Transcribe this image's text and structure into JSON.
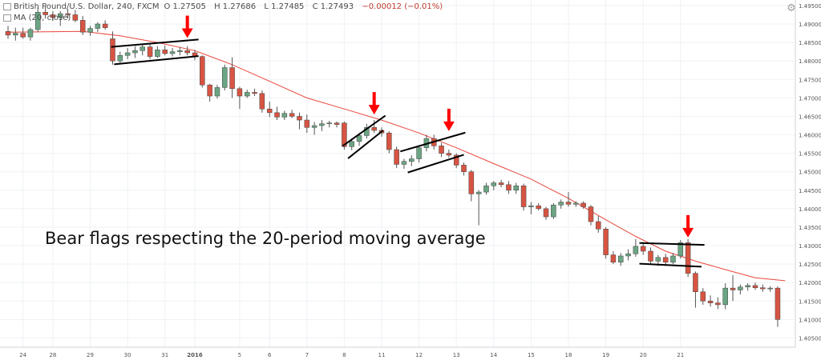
{
  "legend": {
    "symbol_label": "British Pound/U.S. Dollar, 240, FXCM",
    "ohlc": {
      "open": "O 1.27505",
      "high": "H 1.27686",
      "low": "L 1.27485",
      "close": "C 1.27493",
      "change": "−0.00012 (−0.01%)"
    },
    "ma_label": "MA (20, close)"
  },
  "annotation": "Bear flags respecting the 20-period moving average",
  "colors": {
    "up": "#6ba583",
    "down": "#d75442",
    "ma": "#e8473b",
    "arrow": "#ff0000",
    "grid": "#eef1f4",
    "axis_text": "#555555"
  },
  "icons": [
    "settings-icon",
    "arrow-down-icon"
  ],
  "chart_data": {
    "type": "candlestick",
    "title": "British Pound/U.S. Dollar, 240, FXCM",
    "xlabel": "",
    "ylabel": "",
    "ylim": [
      1.4025,
      1.4965
    ],
    "grid": true,
    "y_ticks": [
      "1.49500",
      "1.49000",
      "1.48500",
      "1.48000",
      "1.47500",
      "1.47000",
      "1.46500",
      "1.46000",
      "1.45500",
      "1.45000",
      "1.44500",
      "1.44000",
      "1.43500",
      "1.43000",
      "1.42500",
      "1.42000",
      "1.41500",
      "1.41000",
      "1.40500"
    ],
    "x_ticks": [
      {
        "label": "24",
        "index": 2
      },
      {
        "label": "28",
        "index": 6
      },
      {
        "label": "29",
        "index": 11
      },
      {
        "label": "30",
        "index": 16
      },
      {
        "label": "31",
        "index": 21
      },
      {
        "label": "2016",
        "index": 25
      },
      {
        "label": "5",
        "index": 31
      },
      {
        "label": "6",
        "index": 35
      },
      {
        "label": "7",
        "index": 40
      },
      {
        "label": "8",
        "index": 45
      },
      {
        "label": "11",
        "index": 50
      },
      {
        "label": "12",
        "index": 55
      },
      {
        "label": "13",
        "index": 60
      },
      {
        "label": "14",
        "index": 65
      },
      {
        "label": "15",
        "index": 70
      },
      {
        "label": "18",
        "index": 75
      },
      {
        "label": "19",
        "index": 80
      },
      {
        "label": "20",
        "index": 85
      },
      {
        "label": "21",
        "index": 90
      }
    ],
    "candles": [
      {
        "o": 1.488,
        "h": 1.4895,
        "l": 1.486,
        "c": 1.487
      },
      {
        "o": 1.487,
        "h": 1.489,
        "l": 1.4855,
        "c": 1.4875
      },
      {
        "o": 1.4875,
        "h": 1.489,
        "l": 1.486,
        "c": 1.4865
      },
      {
        "o": 1.4865,
        "h": 1.489,
        "l": 1.4855,
        "c": 1.4885
      },
      {
        "o": 1.4885,
        "h": 1.4945,
        "l": 1.4878,
        "c": 1.4932
      },
      {
        "o": 1.4932,
        "h": 1.4948,
        "l": 1.4915,
        "c": 1.4925
      },
      {
        "o": 1.4925,
        "h": 1.4935,
        "l": 1.4908,
        "c": 1.4918
      },
      {
        "o": 1.4918,
        "h": 1.4935,
        "l": 1.4895,
        "c": 1.4928
      },
      {
        "o": 1.4928,
        "h": 1.494,
        "l": 1.4915,
        "c": 1.4925
      },
      {
        "o": 1.4925,
        "h": 1.4938,
        "l": 1.4905,
        "c": 1.491
      },
      {
        "o": 1.491,
        "h": 1.4922,
        "l": 1.487,
        "c": 1.4878
      },
      {
        "o": 1.4878,
        "h": 1.4895,
        "l": 1.4868,
        "c": 1.4888
      },
      {
        "o": 1.4888,
        "h": 1.4905,
        "l": 1.4878,
        "c": 1.49
      },
      {
        "o": 1.49,
        "h": 1.491,
        "l": 1.4885,
        "c": 1.489
      },
      {
        "o": 1.486,
        "h": 1.488,
        "l": 1.479,
        "c": 1.48
      },
      {
        "o": 1.48,
        "h": 1.4825,
        "l": 1.4792,
        "c": 1.4815
      },
      {
        "o": 1.4815,
        "h": 1.4835,
        "l": 1.4805,
        "c": 1.4822
      },
      {
        "o": 1.4822,
        "h": 1.484,
        "l": 1.4808,
        "c": 1.4828
      },
      {
        "o": 1.4828,
        "h": 1.4845,
        "l": 1.4815,
        "c": 1.4838
      },
      {
        "o": 1.4838,
        "h": 1.4848,
        "l": 1.4805,
        "c": 1.4812
      },
      {
        "o": 1.4812,
        "h": 1.484,
        "l": 1.4808,
        "c": 1.483
      },
      {
        "o": 1.483,
        "h": 1.4842,
        "l": 1.4815,
        "c": 1.482
      },
      {
        "o": 1.482,
        "h": 1.4835,
        "l": 1.4812,
        "c": 1.4825
      },
      {
        "o": 1.4825,
        "h": 1.4838,
        "l": 1.4815,
        "c": 1.4828
      },
      {
        "o": 1.4828,
        "h": 1.484,
        "l": 1.4815,
        "c": 1.4822
      },
      {
        "o": 1.4822,
        "h": 1.483,
        "l": 1.4802,
        "c": 1.4812
      },
      {
        "o": 1.4812,
        "h": 1.4815,
        "l": 1.4728,
        "c": 1.4735
      },
      {
        "o": 1.4735,
        "h": 1.4738,
        "l": 1.469,
        "c": 1.4705
      },
      {
        "o": 1.4705,
        "h": 1.4735,
        "l": 1.4698,
        "c": 1.4728
      },
      {
        "o": 1.4728,
        "h": 1.479,
        "l": 1.472,
        "c": 1.4782
      },
      {
        "o": 1.4782,
        "h": 1.481,
        "l": 1.47,
        "c": 1.4725
      },
      {
        "o": 1.4725,
        "h": 1.473,
        "l": 1.467,
        "c": 1.4705
      },
      {
        "o": 1.4705,
        "h": 1.4722,
        "l": 1.47,
        "c": 1.4715
      },
      {
        "o": 1.4715,
        "h": 1.4725,
        "l": 1.4705,
        "c": 1.4712
      },
      {
        "o": 1.4712,
        "h": 1.472,
        "l": 1.466,
        "c": 1.467
      },
      {
        "o": 1.467,
        "h": 1.469,
        "l": 1.4648,
        "c": 1.466
      },
      {
        "o": 1.466,
        "h": 1.4676,
        "l": 1.464,
        "c": 1.4648
      },
      {
        "o": 1.4648,
        "h": 1.4665,
        "l": 1.464,
        "c": 1.4658
      },
      {
        "o": 1.4658,
        "h": 1.4668,
        "l": 1.4645,
        "c": 1.465
      },
      {
        "o": 1.465,
        "h": 1.466,
        "l": 1.4615,
        "c": 1.464
      },
      {
        "o": 1.464,
        "h": 1.4655,
        "l": 1.4605,
        "c": 1.462
      },
      {
        "o": 1.462,
        "h": 1.4635,
        "l": 1.46,
        "c": 1.4625
      },
      {
        "o": 1.4625,
        "h": 1.464,
        "l": 1.461,
        "c": 1.463
      },
      {
        "o": 1.463,
        "h": 1.4638,
        "l": 1.462,
        "c": 1.4632
      },
      {
        "o": 1.4632,
        "h": 1.4636,
        "l": 1.462,
        "c": 1.4628
      },
      {
        "o": 1.4632,
        "h": 1.4636,
        "l": 1.456,
        "c": 1.4568
      },
      {
        "o": 1.4568,
        "h": 1.459,
        "l": 1.4558,
        "c": 1.4582
      },
      {
        "o": 1.4582,
        "h": 1.4605,
        "l": 1.457,
        "c": 1.4598
      },
      {
        "o": 1.4598,
        "h": 1.463,
        "l": 1.459,
        "c": 1.462
      },
      {
        "o": 1.462,
        "h": 1.464,
        "l": 1.4605,
        "c": 1.4612
      },
      {
        "o": 1.4612,
        "h": 1.462,
        "l": 1.4595,
        "c": 1.4605
      },
      {
        "o": 1.4605,
        "h": 1.461,
        "l": 1.455,
        "c": 1.456
      },
      {
        "o": 1.456,
        "h": 1.4568,
        "l": 1.451,
        "c": 1.452
      },
      {
        "o": 1.452,
        "h": 1.4535,
        "l": 1.4508,
        "c": 1.4528
      },
      {
        "o": 1.4528,
        "h": 1.4545,
        "l": 1.4515,
        "c": 1.4535
      },
      {
        "o": 1.4535,
        "h": 1.457,
        "l": 1.4525,
        "c": 1.4565
      },
      {
        "o": 1.4565,
        "h": 1.46,
        "l": 1.4555,
        "c": 1.459
      },
      {
        "o": 1.459,
        "h": 1.46,
        "l": 1.456,
        "c": 1.457
      },
      {
        "o": 1.457,
        "h": 1.4578,
        "l": 1.454,
        "c": 1.455
      },
      {
        "o": 1.455,
        "h": 1.456,
        "l": 1.4538,
        "c": 1.4545
      },
      {
        "o": 1.4545,
        "h": 1.455,
        "l": 1.451,
        "c": 1.4518
      },
      {
        "o": 1.4518,
        "h": 1.4525,
        "l": 1.449,
        "c": 1.45
      },
      {
        "o": 1.45,
        "h": 1.4505,
        "l": 1.442,
        "c": 1.444
      },
      {
        "o": 1.444,
        "h": 1.445,
        "l": 1.4355,
        "c": 1.4445
      },
      {
        "o": 1.4445,
        "h": 1.447,
        "l": 1.4438,
        "c": 1.4462
      },
      {
        "o": 1.4462,
        "h": 1.4475,
        "l": 1.445,
        "c": 1.447
      },
      {
        "o": 1.447,
        "h": 1.4478,
        "l": 1.4458,
        "c": 1.4465
      },
      {
        "o": 1.4465,
        "h": 1.4475,
        "l": 1.444,
        "c": 1.445
      },
      {
        "o": 1.445,
        "h": 1.447,
        "l": 1.444,
        "c": 1.4462
      },
      {
        "o": 1.4462,
        "h": 1.4468,
        "l": 1.4395,
        "c": 1.4405
      },
      {
        "o": 1.4405,
        "h": 1.4418,
        "l": 1.4385,
        "c": 1.4408
      },
      {
        "o": 1.4408,
        "h": 1.4415,
        "l": 1.4395,
        "c": 1.44
      },
      {
        "o": 1.44,
        "h": 1.4405,
        "l": 1.437,
        "c": 1.4378
      },
      {
        "o": 1.4378,
        "h": 1.4415,
        "l": 1.4372,
        "c": 1.441
      },
      {
        "o": 1.441,
        "h": 1.4425,
        "l": 1.44,
        "c": 1.4418
      },
      {
        "o": 1.4418,
        "h": 1.4445,
        "l": 1.4405,
        "c": 1.4412
      },
      {
        "o": 1.4412,
        "h": 1.442,
        "l": 1.4405,
        "c": 1.4415
      },
      {
        "o": 1.4415,
        "h": 1.442,
        "l": 1.44,
        "c": 1.4405
      },
      {
        "o": 1.4405,
        "h": 1.441,
        "l": 1.4355,
        "c": 1.4365
      },
      {
        "o": 1.4365,
        "h": 1.438,
        "l": 1.4335,
        "c": 1.4345
      },
      {
        "o": 1.4345,
        "h": 1.435,
        "l": 1.4265,
        "c": 1.4275
      },
      {
        "o": 1.4275,
        "h": 1.4285,
        "l": 1.425,
        "c": 1.4255
      },
      {
        "o": 1.4255,
        "h": 1.428,
        "l": 1.4245,
        "c": 1.4272
      },
      {
        "o": 1.4272,
        "h": 1.429,
        "l": 1.426,
        "c": 1.4278
      },
      {
        "o": 1.4278,
        "h": 1.4318,
        "l": 1.427,
        "c": 1.4298
      },
      {
        "o": 1.4298,
        "h": 1.431,
        "l": 1.4275,
        "c": 1.4285
      },
      {
        "o": 1.4285,
        "h": 1.4295,
        "l": 1.4248,
        "c": 1.4258
      },
      {
        "o": 1.4258,
        "h": 1.4275,
        "l": 1.4245,
        "c": 1.4268
      },
      {
        "o": 1.4268,
        "h": 1.4278,
        "l": 1.4245,
        "c": 1.4255
      },
      {
        "o": 1.4255,
        "h": 1.428,
        "l": 1.425,
        "c": 1.4272
      },
      {
        "o": 1.4272,
        "h": 1.4315,
        "l": 1.4265,
        "c": 1.4308
      },
      {
        "o": 1.4308,
        "h": 1.4318,
        "l": 1.4215,
        "c": 1.4225
      },
      {
        "o": 1.4225,
        "h": 1.423,
        "l": 1.4132,
        "c": 1.4175
      },
      {
        "o": 1.4175,
        "h": 1.4185,
        "l": 1.414,
        "c": 1.415
      },
      {
        "o": 1.415,
        "h": 1.4165,
        "l": 1.4135,
        "c": 1.4145
      },
      {
        "o": 1.4145,
        "h": 1.416,
        "l": 1.4128,
        "c": 1.414
      },
      {
        "o": 1.414,
        "h": 1.4198,
        "l": 1.4128,
        "c": 1.4185
      },
      {
        "o": 1.4185,
        "h": 1.422,
        "l": 1.415,
        "c": 1.418
      },
      {
        "o": 1.418,
        "h": 1.4195,
        "l": 1.4168,
        "c": 1.4188
      },
      {
        "o": 1.4188,
        "h": 1.4198,
        "l": 1.4178,
        "c": 1.4192
      },
      {
        "o": 1.4192,
        "h": 1.42,
        "l": 1.418,
        "c": 1.4186
      },
      {
        "o": 1.4186,
        "h": 1.4195,
        "l": 1.4175,
        "c": 1.4183
      },
      {
        "o": 1.4183,
        "h": 1.419,
        "l": 1.4175,
        "c": 1.4185
      },
      {
        "o": 1.4185,
        "h": 1.419,
        "l": 1.408,
        "c": 1.41
      }
    ],
    "moving_average": {
      "period": 20,
      "points": [
        {
          "i": 0,
          "v": 1.4878
        },
        {
          "i": 10,
          "v": 1.488
        },
        {
          "i": 15,
          "v": 1.4868
        },
        {
          "i": 20,
          "v": 1.485
        },
        {
          "i": 25,
          "v": 1.4828
        },
        {
          "i": 30,
          "v": 1.479
        },
        {
          "i": 35,
          "v": 1.4745
        },
        {
          "i": 40,
          "v": 1.47
        },
        {
          "i": 45,
          "v": 1.467
        },
        {
          "i": 50,
          "v": 1.464
        },
        {
          "i": 55,
          "v": 1.4605
        },
        {
          "i": 60,
          "v": 1.4565
        },
        {
          "i": 65,
          "v": 1.4522
        },
        {
          "i": 70,
          "v": 1.448
        },
        {
          "i": 75,
          "v": 1.4428
        },
        {
          "i": 80,
          "v": 1.437
        },
        {
          "i": 84,
          "v": 1.4325
        },
        {
          "i": 88,
          "v": 1.4285
        },
        {
          "i": 92,
          "v": 1.4258
        },
        {
          "i": 96,
          "v": 1.4235
        },
        {
          "i": 100,
          "v": 1.4213
        },
        {
          "i": 104,
          "v": 1.4205
        }
      ]
    },
    "trendlines": [
      {
        "x1": 13.8,
        "y1": 1.4838,
        "x2": 25.5,
        "y2": 1.4858
      },
      {
        "x1": 14.2,
        "y1": 1.4791,
        "x2": 25.5,
        "y2": 1.4813
      },
      {
        "x1": 44.8,
        "y1": 1.457,
        "x2": 50.5,
        "y2": 1.4652
      },
      {
        "x1": 45.5,
        "y1": 1.4536,
        "x2": 50.2,
        "y2": 1.4612
      },
      {
        "x1": 52.5,
        "y1": 1.4555,
        "x2": 61.2,
        "y2": 1.4606
      },
      {
        "x1": 53.5,
        "y1": 1.4498,
        "x2": 61.0,
        "y2": 1.4546
      },
      {
        "x1": 84.5,
        "y1": 1.4307,
        "x2": 93.2,
        "y2": 1.4302
      },
      {
        "x1": 84.5,
        "y1": 1.4251,
        "x2": 92.8,
        "y2": 1.4243
      }
    ],
    "signal_arrows": [
      {
        "index": 24,
        "price": 1.4862
      },
      {
        "index": 49,
        "price": 1.4655
      },
      {
        "index": 59,
        "price": 1.461
      },
      {
        "index": 91,
        "price": 1.4322
      }
    ],
    "annotations": [
      "Bear flags respecting the 20-period moving average"
    ]
  }
}
